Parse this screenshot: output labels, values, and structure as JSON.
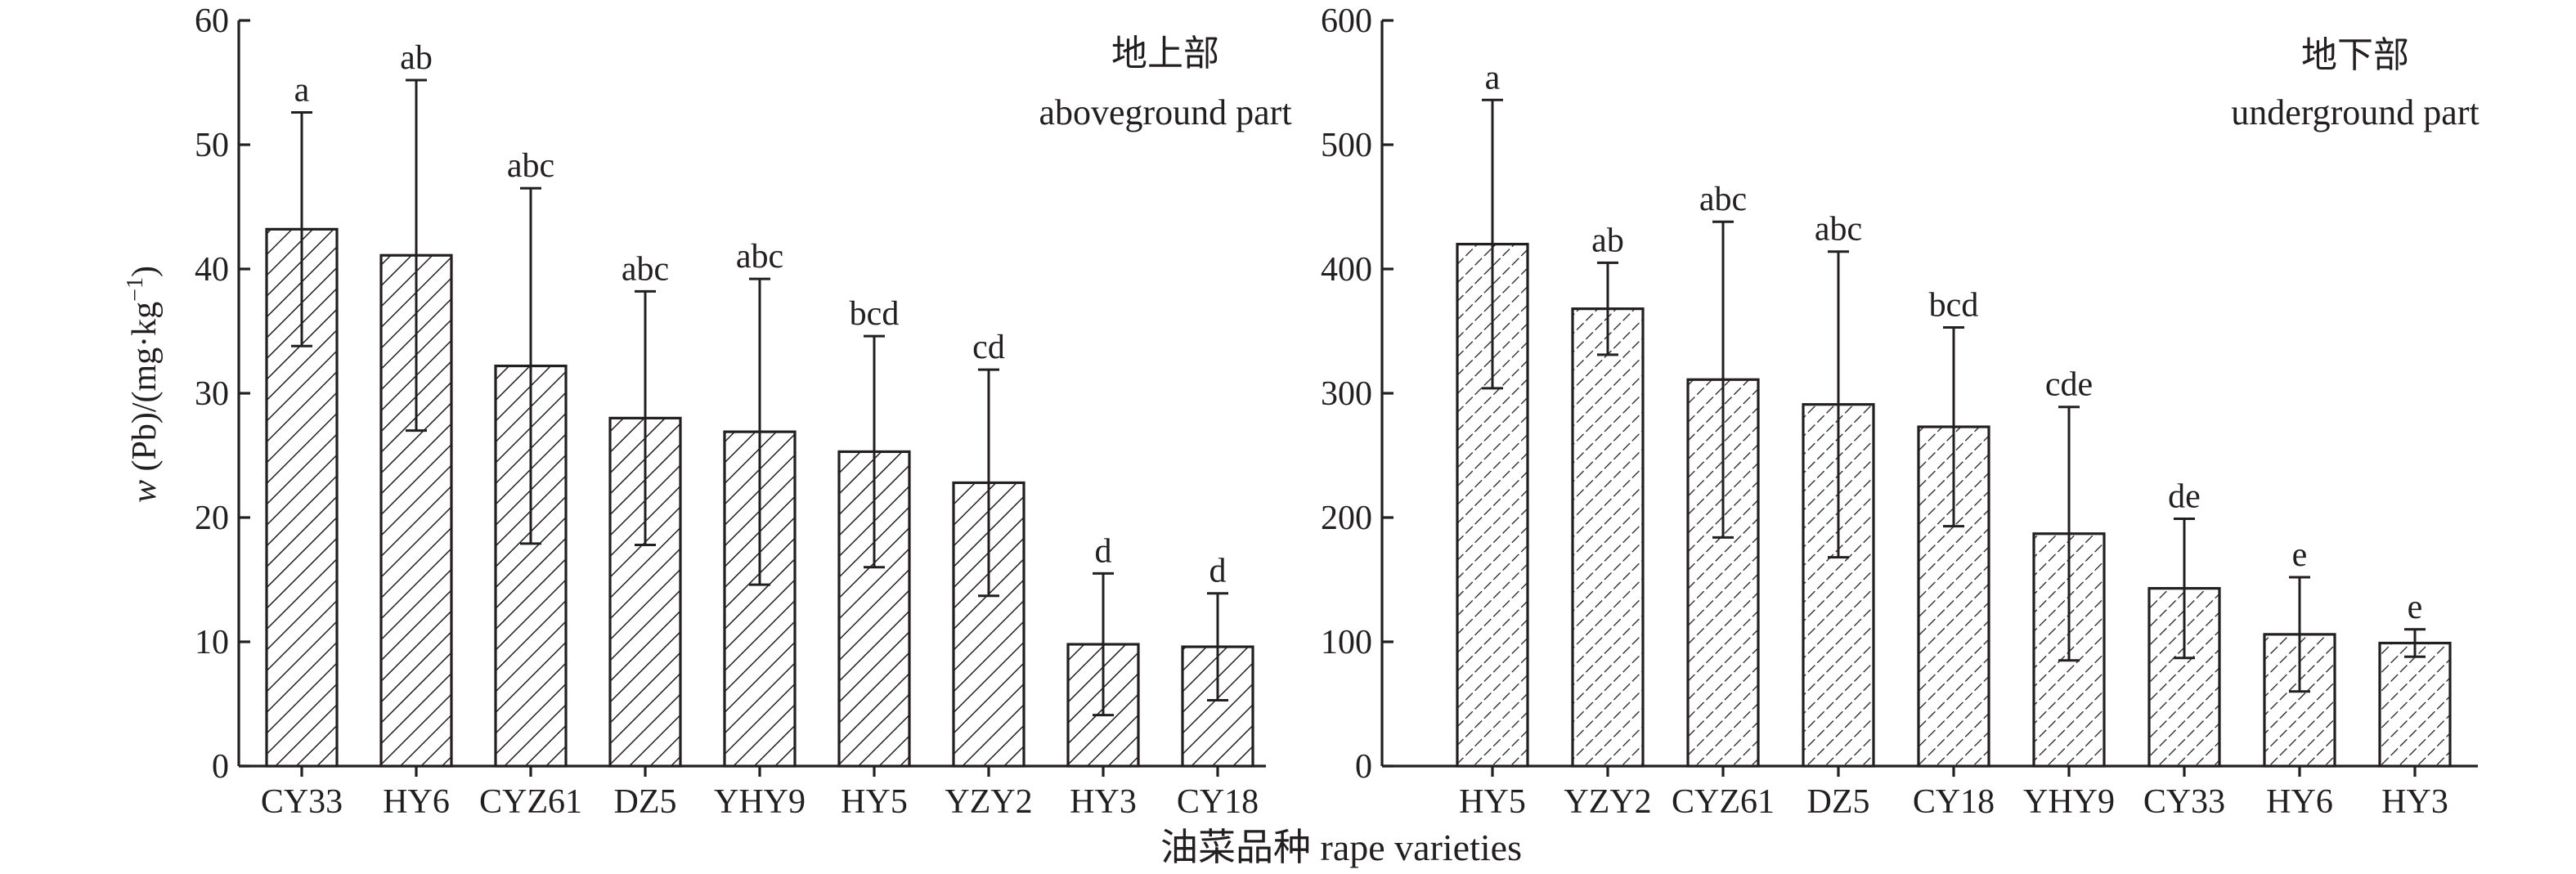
{
  "colors": {
    "ink": "#231f20",
    "background": "#ffffff"
  },
  "chart_data": [
    {
      "type": "bar",
      "annotation_cn": "地上部",
      "annotation_en": "aboveground part",
      "ylabel_italic": "w",
      "ylabel_rest": " (Pb)/(mg·kg",
      "ylabel_sup": "−1",
      "ylabel_close": ")",
      "ylim": [
        0,
        60
      ],
      "yticks": [
        0,
        10,
        20,
        30,
        40,
        50,
        60
      ],
      "grid": false,
      "hatch": "diagonal",
      "categories": [
        "CY33",
        "HY6",
        "CYZ61",
        "DZ5",
        "YHY9",
        "HY5",
        "YZY2",
        "HY3",
        "CY18"
      ],
      "values": [
        43.2,
        41.1,
        32.2,
        28.0,
        26.9,
        25.3,
        22.8,
        9.8,
        9.6
      ],
      "error": [
        9.4,
        14.1,
        14.3,
        10.2,
        12.3,
        9.3,
        9.1,
        5.7,
        4.3
      ],
      "letters": [
        "a",
        "ab",
        "abc",
        "abc",
        "abc",
        "bcd",
        "cd",
        "d",
        "d"
      ]
    },
    {
      "type": "bar",
      "annotation_cn": "地下部",
      "annotation_en": "underground part",
      "ylim": [
        0,
        600
      ],
      "yticks": [
        0,
        100,
        200,
        300,
        400,
        500,
        600
      ],
      "grid": false,
      "hatch": "diagonal-dense",
      "categories": [
        "HY5",
        "YZY2",
        "CYZ61",
        "DZ5",
        "CY18",
        "YHY9",
        "CY33",
        "HY6",
        "HY3"
      ],
      "values": [
        420,
        368,
        311,
        291,
        273,
        187,
        143,
        106,
        99
      ],
      "error": [
        116,
        37,
        127,
        123,
        80,
        102,
        56,
        46,
        11
      ],
      "letters": [
        "a",
        "ab",
        "abc",
        "abc",
        "bcd",
        "cde",
        "de",
        "e",
        "e"
      ]
    }
  ],
  "xlabel": "油菜品种 rape varieties"
}
